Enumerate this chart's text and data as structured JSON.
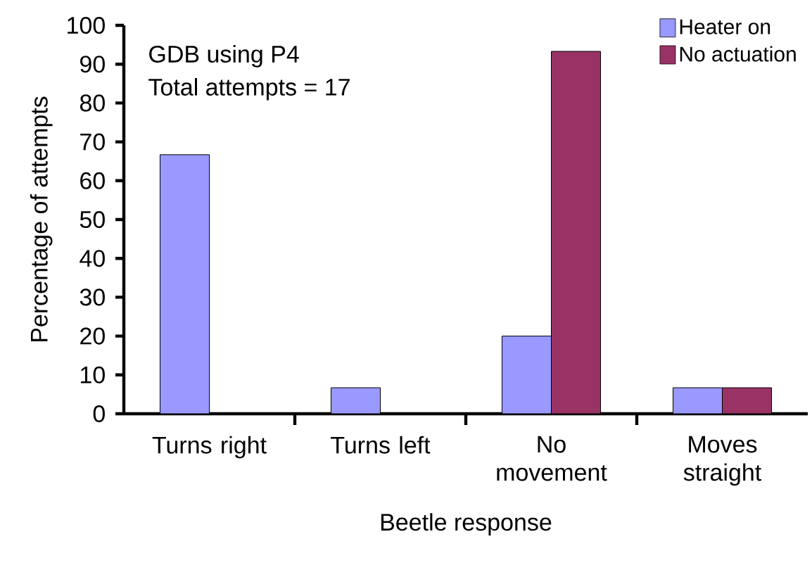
{
  "chart_data": {
    "type": "bar",
    "xlabel": "Beetle response",
    "ylabel": "Percentage of attempts",
    "categories": [
      "Turns right",
      "Turns left",
      "No movement",
      "Moves straight"
    ],
    "series": [
      {
        "name": "Heater on",
        "color": "#9999ff",
        "values": [
          66.7,
          6.7,
          20,
          6.7
        ]
      },
      {
        "name": "No actuation",
        "color": "#993366",
        "values": [
          0,
          0,
          93.3,
          6.7
        ]
      }
    ],
    "ylim": [
      0,
      100
    ],
    "yticks": [
      0,
      10,
      20,
      30,
      40,
      50,
      60,
      70,
      80,
      90,
      100
    ],
    "legend": "top right",
    "grid": false,
    "annotations": [
      "GDB using P4",
      "Total attempts = 17"
    ]
  }
}
